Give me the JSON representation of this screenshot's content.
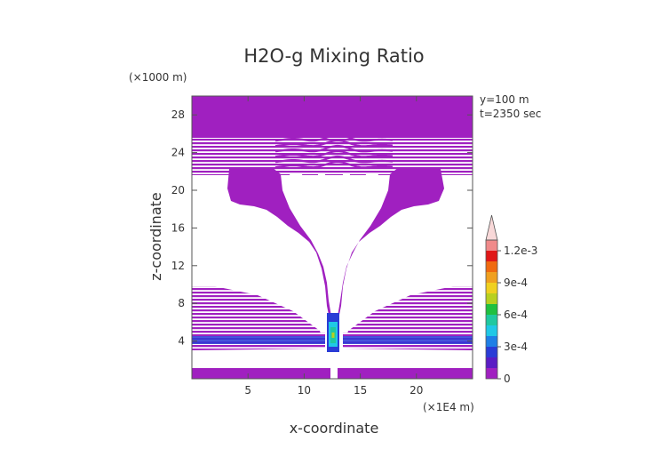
{
  "chart_data": {
    "type": "heatmap",
    "title": "H2O-g Mixing Ratio",
    "xlabel": "x-coordinate",
    "ylabel": "z-coordinate",
    "x_unit": "(×1E4 m)",
    "y_unit": "(×1000 m)",
    "annotations": [
      "y=100 m",
      "t=2350 sec"
    ],
    "xlim": [
      0,
      25
    ],
    "ylim": [
      0,
      30
    ],
    "x_ticks": [
      5,
      10,
      15,
      20
    ],
    "y_ticks": [
      4,
      8,
      12,
      16,
      20,
      24,
      28
    ],
    "colorbar": {
      "levels": [
        0,
        0.0001,
        0.0002,
        0.0003,
        0.0004,
        0.0005,
        0.0006,
        0.0007,
        0.0008,
        0.0009,
        0.001,
        0.0011,
        0.0012,
        0.0013
      ],
      "colors": [
        "#a020c0",
        "#5a1cc4",
        "#2a3cd6",
        "#1f7fe6",
        "#20c8e6",
        "#20c8a0",
        "#20c040",
        "#b8d020",
        "#f0d020",
        "#f0a020",
        "#f06a10",
        "#e01818",
        "#f08a8a",
        "#f8d8d8"
      ],
      "tick_values": [
        0,
        0.0003,
        0.0006,
        0.0009,
        0.0012
      ],
      "tick_labels": [
        "0",
        "3e-4",
        "6e-4",
        "9e-4",
        "1.2e-3"
      ],
      "extend": "max"
    },
    "colors": {
      "base": "#a020c0",
      "moist_band": "#2a3cd6",
      "core": "#20c8a0"
    }
  }
}
